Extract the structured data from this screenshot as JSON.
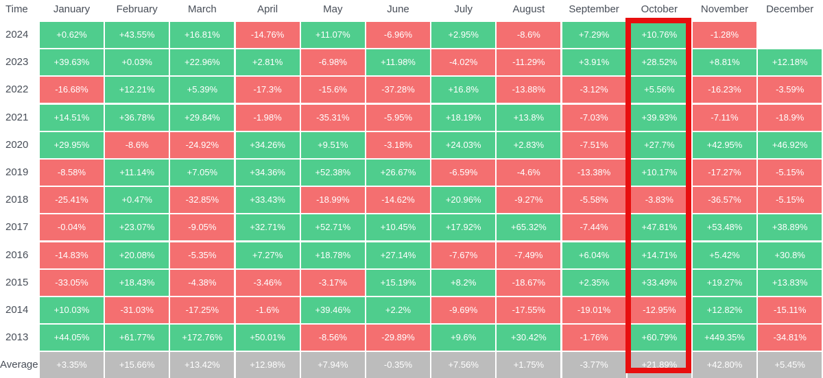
{
  "chart_data": {
    "type": "heatmap",
    "corner_label": "Time",
    "columns": [
      "January",
      "February",
      "March",
      "April",
      "May",
      "June",
      "July",
      "August",
      "September",
      "October",
      "November",
      "December"
    ],
    "rows": [
      {
        "label": "2024",
        "values": [
          "+0.62%",
          "+43.55%",
          "+16.81%",
          "-14.76%",
          "+11.07%",
          "-6.96%",
          "+2.95%",
          "-8.6%",
          "+7.29%",
          "+10.76%",
          "-1.28%",
          null
        ]
      },
      {
        "label": "2023",
        "values": [
          "+39.63%",
          "+0.03%",
          "+22.96%",
          "+2.81%",
          "-6.98%",
          "+11.98%",
          "-4.02%",
          "-11.29%",
          "+3.91%",
          "+28.52%",
          "+8.81%",
          "+12.18%"
        ]
      },
      {
        "label": "2022",
        "values": [
          "-16.68%",
          "+12.21%",
          "+5.39%",
          "-17.3%",
          "-15.6%",
          "-37.28%",
          "+16.8%",
          "-13.88%",
          "-3.12%",
          "+5.56%",
          "-16.23%",
          "-3.59%"
        ]
      },
      {
        "label": "2021",
        "values": [
          "+14.51%",
          "+36.78%",
          "+29.84%",
          "-1.98%",
          "-35.31%",
          "-5.95%",
          "+18.19%",
          "+13.8%",
          "-7.03%",
          "+39.93%",
          "-7.11%",
          "-18.9%"
        ]
      },
      {
        "label": "2020",
        "values": [
          "+29.95%",
          "-8.6%",
          "-24.92%",
          "+34.26%",
          "+9.51%",
          "-3.18%",
          "+24.03%",
          "+2.83%",
          "-7.51%",
          "+27.7%",
          "+42.95%",
          "+46.92%"
        ]
      },
      {
        "label": "2019",
        "values": [
          "-8.58%",
          "+11.14%",
          "+7.05%",
          "+34.36%",
          "+52.38%",
          "+26.67%",
          "-6.59%",
          "-4.6%",
          "-13.38%",
          "+10.17%",
          "-17.27%",
          "-5.15%"
        ]
      },
      {
        "label": "2018",
        "values": [
          "-25.41%",
          "+0.47%",
          "-32.85%",
          "+33.43%",
          "-18.99%",
          "-14.62%",
          "+20.96%",
          "-9.27%",
          "-5.58%",
          "-3.83%",
          "-36.57%",
          "-5.15%"
        ]
      },
      {
        "label": "2017",
        "values": [
          "-0.04%",
          "+23.07%",
          "-9.05%",
          "+32.71%",
          "+52.71%",
          "+10.45%",
          "+17.92%",
          "+65.32%",
          "-7.44%",
          "+47.81%",
          "+53.48%",
          "+38.89%"
        ]
      },
      {
        "label": "2016",
        "values": [
          "-14.83%",
          "+20.08%",
          "-5.35%",
          "+7.27%",
          "+18.78%",
          "+27.14%",
          "-7.67%",
          "-7.49%",
          "+6.04%",
          "+14.71%",
          "+5.42%",
          "+30.8%"
        ]
      },
      {
        "label": "2015",
        "values": [
          "-33.05%",
          "+18.43%",
          "-4.38%",
          "-3.46%",
          "-3.17%",
          "+15.19%",
          "+8.2%",
          "-18.67%",
          "+2.35%",
          "+33.49%",
          "+19.27%",
          "+13.83%"
        ]
      },
      {
        "label": "2014",
        "values": [
          "+10.03%",
          "-31.03%",
          "-17.25%",
          "-1.6%",
          "+39.46%",
          "+2.2%",
          "-9.69%",
          "-17.55%",
          "-19.01%",
          "-12.95%",
          "+12.82%",
          "-15.11%"
        ]
      },
      {
        "label": "2013",
        "values": [
          "+44.05%",
          "+61.77%",
          "+172.76%",
          "+50.01%",
          "-8.56%",
          "-29.89%",
          "+9.6%",
          "+30.42%",
          "-1.76%",
          "+60.79%",
          "+449.35%",
          "-34.81%"
        ]
      }
    ],
    "average": {
      "label": "Average",
      "values": [
        "+3.35%",
        "+15.66%",
        "+13.42%",
        "+12.98%",
        "+7.94%",
        "-0.35%",
        "+7.56%",
        "+1.75%",
        "-3.77%",
        "+21.89%",
        "+42.80%",
        "+5.45%"
      ]
    },
    "highlighted_column": "October",
    "colors": {
      "positive": "#4fcd8d",
      "negative": "#f46f70",
      "average": "#bcbcbc",
      "highlight": "#e80f0f",
      "header_text": "#474d57",
      "cell_text": "#ffffff"
    }
  }
}
